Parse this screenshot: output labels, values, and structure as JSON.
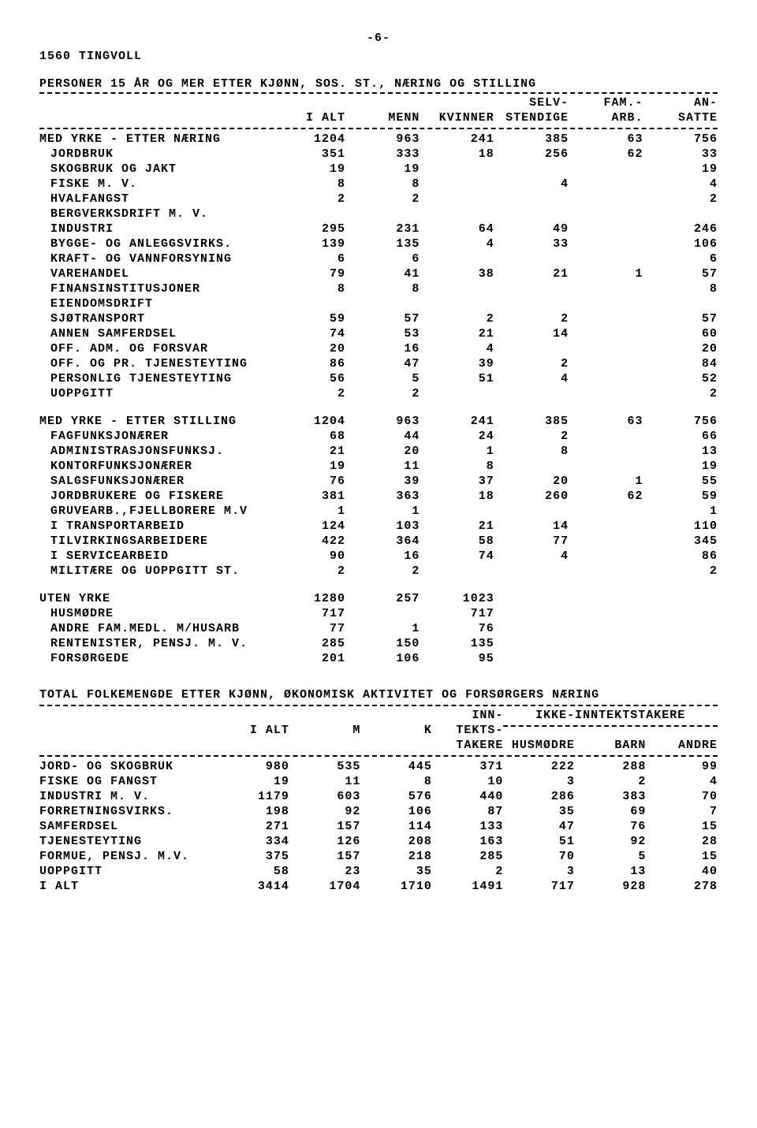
{
  "page_number": "-6-",
  "region_code": "1560 TINGVOLL",
  "table1": {
    "title": "PERSONER 15 ÅR OG MER ETTER KJØNN, SOS. ST., NÆRING OG STILLING",
    "headers": {
      "c1": "I ALT",
      "c2": "MENN",
      "c3": "KVINNER",
      "c4a": "SELV-",
      "c4b": "STENDIGE",
      "c5a": "FAM.-",
      "c5b": "ARB.",
      "c6a": "AN-",
      "c6b": "SATTE"
    },
    "rows": [
      {
        "l": "MED YRKE - ETTER NÆRING",
        "v": [
          "1204",
          "963",
          "241",
          "385",
          "63",
          "756"
        ],
        "i": 0
      },
      {
        "l": "JORDBRUK",
        "v": [
          "351",
          "333",
          "18",
          "256",
          "62",
          "33"
        ],
        "i": 1
      },
      {
        "l": "SKOGBRUK OG JAKT",
        "v": [
          "19",
          "19",
          "",
          "",
          "",
          "19"
        ],
        "i": 1
      },
      {
        "l": "FISKE M. V.",
        "v": [
          "8",
          "8",
          "",
          "4",
          "",
          "4"
        ],
        "i": 1
      },
      {
        "l": "HVALFANGST",
        "v": [
          "2",
          "2",
          "",
          "",
          "",
          "2"
        ],
        "i": 1
      },
      {
        "l": "BERGVERKSDRIFT M. V.",
        "v": [
          "",
          "",
          "",
          "",
          "",
          ""
        ],
        "i": 1
      },
      {
        "l": "INDUSTRI",
        "v": [
          "295",
          "231",
          "64",
          "49",
          "",
          "246"
        ],
        "i": 1
      },
      {
        "l": "BYGGE- OG ANLEGGSVIRKS.",
        "v": [
          "139",
          "135",
          "4",
          "33",
          "",
          "106"
        ],
        "i": 1
      },
      {
        "l": "KRAFT- OG VANNFORSYNING",
        "v": [
          "6",
          "6",
          "",
          "",
          "",
          "6"
        ],
        "i": 1
      },
      {
        "l": "VAREHANDEL",
        "v": [
          "79",
          "41",
          "38",
          "21",
          "1",
          "57"
        ],
        "i": 1
      },
      {
        "l": "FINANSINSTITUSJONER",
        "v": [
          "8",
          "8",
          "",
          "",
          "",
          "8"
        ],
        "i": 1
      },
      {
        "l": "EIENDOMSDRIFT",
        "v": [
          "",
          "",
          "",
          "",
          "",
          ""
        ],
        "i": 1
      },
      {
        "l": "SJØTRANSPORT",
        "v": [
          "59",
          "57",
          "2",
          "2",
          "",
          "57"
        ],
        "i": 1
      },
      {
        "l": "ANNEN SAMFERDSEL",
        "v": [
          "74",
          "53",
          "21",
          "14",
          "",
          "60"
        ],
        "i": 1
      },
      {
        "l": "OFF. ADM. OG FORSVAR",
        "v": [
          "20",
          "16",
          "4",
          "",
          "",
          "20"
        ],
        "i": 1
      },
      {
        "l": "OFF. OG PR. TJENESTEYTING",
        "v": [
          "86",
          "47",
          "39",
          "2",
          "",
          "84"
        ],
        "i": 1
      },
      {
        "l": "PERSONLIG TJENESTEYTING",
        "v": [
          "56",
          "5",
          "51",
          "4",
          "",
          "52"
        ],
        "i": 1
      },
      {
        "l": "UOPPGITT",
        "v": [
          "2",
          "2",
          "",
          "",
          "",
          "2"
        ],
        "i": 1
      },
      {
        "sp": 1
      },
      {
        "l": "MED YRKE - ETTER STILLING",
        "v": [
          "1204",
          "963",
          "241",
          "385",
          "63",
          "756"
        ],
        "i": 0
      },
      {
        "l": "FAGFUNKSJONÆRER",
        "v": [
          "68",
          "44",
          "24",
          "2",
          "",
          "66"
        ],
        "i": 1
      },
      {
        "l": "ADMINISTRASJONSFUNKSJ.",
        "v": [
          "21",
          "20",
          "1",
          "8",
          "",
          "13"
        ],
        "i": 1
      },
      {
        "l": "KONTORFUNKSJONÆRER",
        "v": [
          "19",
          "11",
          "8",
          "",
          "",
          "19"
        ],
        "i": 1
      },
      {
        "l": "SALGSFUNKSJONÆRER",
        "v": [
          "76",
          "39",
          "37",
          "20",
          "1",
          "55"
        ],
        "i": 1
      },
      {
        "l": "JORDBRUKERE OG FISKERE",
        "v": [
          "381",
          "363",
          "18",
          "260",
          "62",
          "59"
        ],
        "i": 1
      },
      {
        "l": "GRUVEARB.,FJELLBORERE M.V",
        "v": [
          "1",
          "1",
          "",
          "",
          "",
          "1"
        ],
        "i": 1
      },
      {
        "l": "I TRANSPORTARBEID",
        "v": [
          "124",
          "103",
          "21",
          "14",
          "",
          "110"
        ],
        "i": 1
      },
      {
        "l": "TILVIRKINGSARBEIDERE",
        "v": [
          "422",
          "364",
          "58",
          "77",
          "",
          "345"
        ],
        "i": 1
      },
      {
        "l": "I SERVICEARBEID",
        "v": [
          "90",
          "16",
          "74",
          "4",
          "",
          "86"
        ],
        "i": 1
      },
      {
        "l": "MILITÆRE OG UOPPGITT ST.",
        "v": [
          "2",
          "2",
          "",
          "",
          "",
          "2"
        ],
        "i": 1
      },
      {
        "sp": 1
      },
      {
        "l": "UTEN YRKE",
        "v": [
          "1280",
          "257",
          "1023",
          "",
          "",
          ""
        ],
        "i": 0
      },
      {
        "l": "HUSMØDRE",
        "v": [
          "717",
          "",
          "717",
          "",
          "",
          ""
        ],
        "i": 1
      },
      {
        "l": "ANDRE FAM.MEDL. M/HUSARB",
        "v": [
          "77",
          "1",
          "76",
          "",
          "",
          ""
        ],
        "i": 1
      },
      {
        "l": "RENTENISTER, PENSJ. M. V.",
        "v": [
          "285",
          "150",
          "135",
          "",
          "",
          ""
        ],
        "i": 1
      },
      {
        "l": "FORSØRGEDE",
        "v": [
          "201",
          "106",
          "95",
          "",
          "",
          ""
        ],
        "i": 1
      }
    ]
  },
  "table2": {
    "title": "TOTAL FOLKEMENGDE ETTER KJØNN, ØKONOMISK AKTIVITET OG FORSØRGERS NÆRING",
    "headers": {
      "c1": "I ALT",
      "c2": "M",
      "c3": "K",
      "c4a": "INN-",
      "c4b": "TEKTS-",
      "c4c": "TAKERE",
      "grp": "IKKE-INNTEKTSTAKERE",
      "c5": "HUSMØDRE",
      "c6": "BARN",
      "c7": "ANDRE"
    },
    "rows": [
      {
        "l": "JORD- OG SKOGBRUK",
        "v": [
          "980",
          "535",
          "445",
          "371",
          "222",
          "288",
          "99"
        ]
      },
      {
        "l": "FISKE OG FANGST",
        "v": [
          "19",
          "11",
          "8",
          "10",
          "3",
          "2",
          "4"
        ]
      },
      {
        "l": "INDUSTRI M. V.",
        "v": [
          "1179",
          "603",
          "576",
          "440",
          "286",
          "383",
          "70"
        ]
      },
      {
        "l": "FORRETNINGSVIRKS.",
        "v": [
          "198",
          "92",
          "106",
          "87",
          "35",
          "69",
          "7"
        ]
      },
      {
        "l": "SAMFERDSEL",
        "v": [
          "271",
          "157",
          "114",
          "133",
          "47",
          "76",
          "15"
        ]
      },
      {
        "l": "TJENESTEYTING",
        "v": [
          "334",
          "126",
          "208",
          "163",
          "51",
          "92",
          "28"
        ]
      },
      {
        "l": "FORMUE, PENSJ. M.V.",
        "v": [
          "375",
          "157",
          "218",
          "285",
          "70",
          "5",
          "15"
        ]
      },
      {
        "l": "UOPPGITT",
        "v": [
          "58",
          "23",
          "35",
          "2",
          "3",
          "13",
          "40"
        ]
      },
      {
        "l": "I ALT",
        "v": [
          "3414",
          "1704",
          "1710",
          "1491",
          "717",
          "928",
          "278"
        ]
      }
    ]
  }
}
